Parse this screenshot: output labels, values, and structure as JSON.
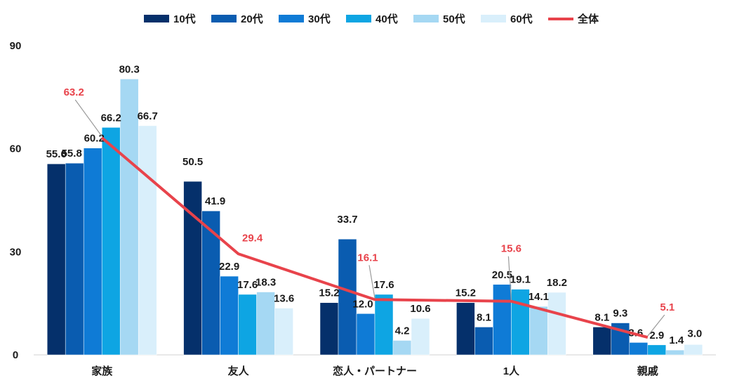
{
  "chart_data": {
    "type": "bar",
    "categories": [
      "家族",
      "友人",
      "恋人・パートナー",
      "1人",
      "親戚"
    ],
    "ylim": [
      0,
      90
    ],
    "yticks": [
      0,
      30,
      60,
      90
    ],
    "series": [
      {
        "name": "10代",
        "color": "#05306b",
        "values": [
          55.6,
          50.5,
          15.2,
          15.2,
          8.1
        ]
      },
      {
        "name": "20代",
        "color": "#0a5cb0",
        "values": [
          55.8,
          41.9,
          33.7,
          8.1,
          9.3
        ]
      },
      {
        "name": "30代",
        "color": "#0f7bd6",
        "values": [
          60.2,
          22.9,
          12.0,
          20.5,
          3.6
        ]
      },
      {
        "name": "40代",
        "color": "#0ea5e3",
        "values": [
          66.2,
          17.6,
          17.6,
          19.1,
          2.9
        ]
      },
      {
        "name": "50代",
        "color": "#a5d8f3",
        "values": [
          80.3,
          18.3,
          4.2,
          14.1,
          1.4
        ]
      },
      {
        "name": "60代",
        "color": "#d9effb",
        "values": [
          66.7,
          13.6,
          10.6,
          18.2,
          3.0
        ]
      }
    ],
    "line_series": {
      "name": "全体",
      "color": "#e8434b",
      "values": [
        63.2,
        29.4,
        16.1,
        15.6,
        5.1
      ]
    },
    "data_labels": {
      "bars": [
        [
          "55.6",
          "55.8",
          "60.2",
          "66.2",
          "80.3",
          "66.7"
        ],
        [
          "50.5",
          "41.9",
          "22.9",
          "17.6",
          "18.3",
          "13.6"
        ],
        [
          "15.2",
          "33.7",
          "12.0",
          "17.6",
          "4.2",
          "10.6"
        ],
        [
          "15.2",
          "8.1",
          "20.5",
          "19.1",
          "14.1",
          "18.2"
        ],
        [
          "8.1",
          "9.3",
          "3.6",
          "2.9",
          "1.4",
          "3.0"
        ]
      ],
      "line": [
        "63.2",
        "29.4",
        "16.1",
        "15.6",
        "5.1"
      ]
    },
    "legend_position": "top",
    "grid": false
  }
}
